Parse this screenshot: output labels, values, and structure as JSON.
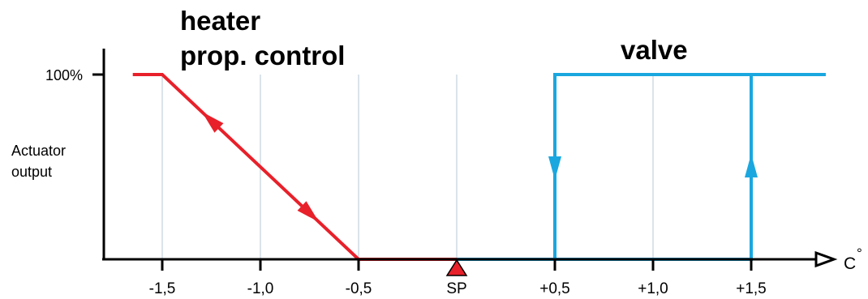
{
  "heater_title": {
    "line1": "heater",
    "line2": "prop. control"
  },
  "valve_title": "valve",
  "y_axis": {
    "label_line1": "Actuator",
    "label_line2": "output",
    "tick_100": "100%"
  },
  "x_axis": {
    "unit": "C",
    "unit_degree": "°",
    "ticks": [
      "-1,5",
      "-1,0",
      "-0,5",
      "SP",
      "+0,5",
      "+1,0",
      "+1,5"
    ]
  },
  "colors": {
    "heater": "#e8202a",
    "valve": "#1aa7df",
    "axis": "#000000",
    "gridline": "#b7c9d6",
    "setpoint_marker": "#e8202a"
  },
  "chart_data": {
    "type": "line",
    "title": "",
    "xlabel": "C°",
    "ylabel": "Actuator output",
    "x_ticks": [
      "-1,5",
      "-1,0",
      "-0,5",
      "SP",
      "+0,5",
      "+1,0",
      "+1,5"
    ],
    "x_tick_values": [
      -1.5,
      -1.0,
      -0.5,
      0,
      0.5,
      1.0,
      1.5
    ],
    "ylim": [
      0,
      100
    ],
    "y_ticks": [
      {
        "value": 100,
        "label": "100%"
      }
    ],
    "grid": true,
    "series": [
      {
        "name": "heater prop. control",
        "points": [
          [
            -1.65,
            100
          ],
          [
            -1.5,
            100
          ],
          [
            -0.5,
            0
          ],
          [
            0,
            0
          ]
        ],
        "arrows": [
          {
            "x": -1.25,
            "y": 75,
            "direction": "up-left"
          },
          {
            "x": -0.75,
            "y": 25,
            "direction": "down-right"
          }
        ]
      },
      {
        "name": "valve",
        "points": [
          [
            0,
            0
          ],
          [
            1.5,
            0
          ],
          [
            1.5,
            100
          ],
          [
            1.88,
            100
          ]
        ],
        "return_path": [
          [
            1.5,
            100
          ],
          [
            0.5,
            100
          ],
          [
            0.5,
            0
          ]
        ],
        "arrows": [
          {
            "x": 1.5,
            "y": 50,
            "direction": "up"
          },
          {
            "x": 0.5,
            "y": 50,
            "direction": "down"
          }
        ]
      }
    ]
  }
}
